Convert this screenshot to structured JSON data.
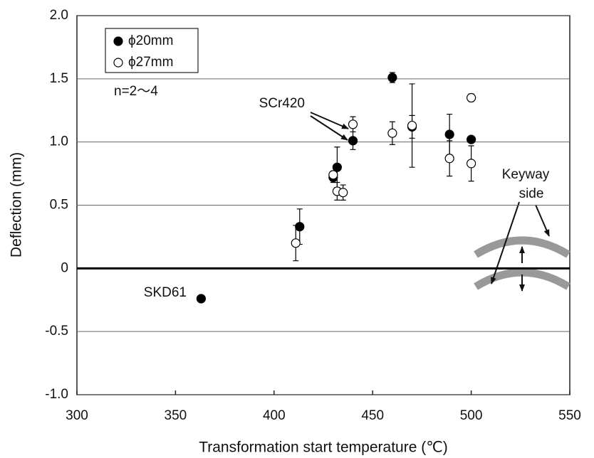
{
  "chart_data": {
    "type": "scatter",
    "xlabel": "Transformation start temperature (℃)",
    "ylabel": "Deflection (mm)",
    "xlim": [
      300,
      550
    ],
    "xticks": [
      300,
      350,
      400,
      450,
      500,
      550
    ],
    "ylim": [
      -1,
      2
    ],
    "yticks": [
      {
        "value": -1,
        "label": "-1.0"
      },
      -0.5,
      0,
      0.5,
      {
        "value": 1,
        "label": "1.0"
      },
      1.5,
      {
        "value": 2,
        "label": "2.0"
      }
    ],
    "grid": true,
    "legend": "upper left",
    "series": [
      {
        "name": "ϕ20mm",
        "color": "#000000",
        "marker": "filled",
        "x": [
          363,
          413,
          430,
          432,
          440,
          460,
          470,
          489,
          500
        ],
        "values": [
          -0.24,
          0.33,
          0.72,
          0.8,
          1.01,
          1.51,
          1.12,
          1.06,
          1.02
        ],
        "errors": [
          0.02,
          0.14,
          0.04,
          0.16,
          0.07,
          0.04,
          0.09,
          0.16,
          0.01
        ]
      },
      {
        "name": "ϕ27mm",
        "color": "#000000",
        "marker": "open",
        "x": [
          411,
          430,
          432,
          435,
          440,
          460,
          470,
          489,
          500,
          500
        ],
        "values": [
          0.2,
          0.74,
          0.61,
          0.6,
          1.14,
          1.07,
          1.13,
          0.87,
          0.83,
          1.35
        ],
        "errors": [
          0.14,
          0.03,
          0.07,
          0.06,
          0.06,
          0.09,
          0.33,
          0.14,
          0.14,
          0.03
        ]
      }
    ],
    "annotations": [
      "n=2～4",
      "SCr420",
      "SKD61",
      "Keyway",
      "side"
    ]
  }
}
